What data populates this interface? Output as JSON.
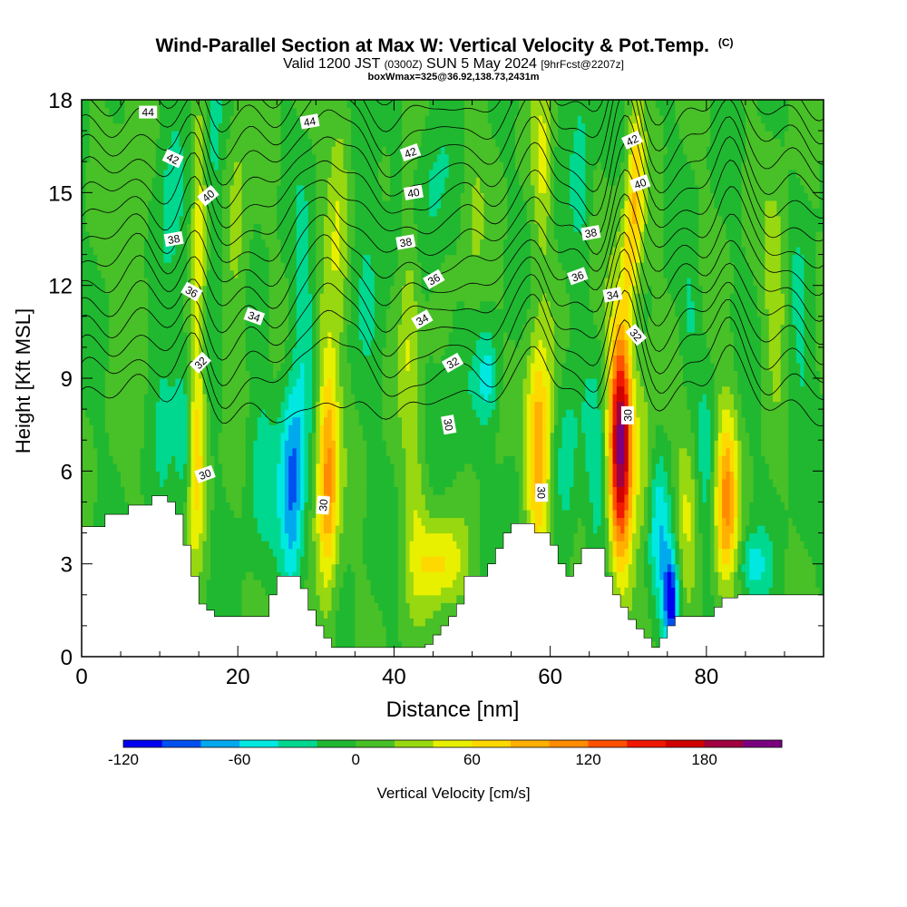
{
  "chart_data": {
    "type": "heatmap",
    "title": "Wind-Parallel Section at Max W: Vertical Velocity & Pot.Temp.",
    "copyright": "(C)",
    "subtitle_parts": {
      "pre": "Valid 1200 JST",
      "utc": "(0300Z)",
      "date": "SUN 5 May 2024",
      "fcst": "[9hrFcst@2207z]"
    },
    "subtitle2": "boxWmax=325@36.92,138.73,2431m",
    "xlabel": "Distance [nm]",
    "ylabel": "Height [Kft MSL]",
    "xlim": [
      0,
      95
    ],
    "ylim": [
      0,
      18
    ],
    "xticks": [
      0,
      20,
      40,
      60,
      80
    ],
    "yticks": [
      0,
      3,
      6,
      9,
      12,
      15,
      18
    ],
    "colorbar": {
      "label": "Vertical Velocity [cm/s]",
      "ticks": [
        "-120",
        "-60",
        "0",
        "60",
        "120",
        "180"
      ],
      "levels": [
        -120,
        -100,
        -80,
        -60,
        -40,
        -20,
        0,
        20,
        40,
        60,
        80,
        100,
        120,
        140,
        160,
        180,
        200,
        220
      ],
      "colors": [
        "#0000f0",
        "#0050f0",
        "#00a8ee",
        "#00e8e0",
        "#00d890",
        "#20b830",
        "#48c028",
        "#98d810",
        "#e8f000",
        "#ffd800",
        "#ffb000",
        "#ff8c00",
        "#ff5000",
        "#f01800",
        "#d00000",
        "#a00040",
        "#7a0080"
      ]
    },
    "terrain": [
      [
        0,
        4.2
      ],
      [
        3,
        4.2
      ],
      [
        3,
        4.6
      ],
      [
        6,
        4.6
      ],
      [
        6,
        4.9
      ],
      [
        9,
        4.9
      ],
      [
        9,
        5.2
      ],
      [
        11,
        5.2
      ],
      [
        11,
        5.0
      ],
      [
        12,
        5.0
      ],
      [
        12,
        4.6
      ],
      [
        13,
        4.6
      ],
      [
        13,
        3.6
      ],
      [
        14,
        3.6
      ],
      [
        14,
        2.6
      ],
      [
        15,
        2.6
      ],
      [
        15,
        1.7
      ],
      [
        16,
        1.7
      ],
      [
        16,
        1.5
      ],
      [
        17,
        1.5
      ],
      [
        17,
        1.3
      ],
      [
        24,
        1.3
      ],
      [
        24,
        2.0
      ],
      [
        25,
        2.0
      ],
      [
        25,
        2.6
      ],
      [
        28,
        2.6
      ],
      [
        28,
        2.2
      ],
      [
        29,
        2.2
      ],
      [
        29,
        1.5
      ],
      [
        30,
        1.5
      ],
      [
        30,
        1.0
      ],
      [
        31,
        1.0
      ],
      [
        31,
        0.6
      ],
      [
        32,
        0.6
      ],
      [
        32,
        0.3
      ],
      [
        44,
        0.3
      ],
      [
        44,
        0.4
      ],
      [
        45,
        0.4
      ],
      [
        45,
        0.7
      ],
      [
        46,
        0.7
      ],
      [
        46,
        1.0
      ],
      [
        47,
        1.0
      ],
      [
        47,
        1.3
      ],
      [
        48,
        1.3
      ],
      [
        48,
        1.7
      ],
      [
        49,
        1.7
      ],
      [
        49,
        2.6
      ],
      [
        52,
        2.6
      ],
      [
        52,
        3.0
      ],
      [
        53,
        3.0
      ],
      [
        53,
        3.5
      ],
      [
        54,
        3.5
      ],
      [
        54,
        4.0
      ],
      [
        55,
        4.0
      ],
      [
        55,
        4.3
      ],
      [
        58,
        4.3
      ],
      [
        58,
        4.0
      ],
      [
        60,
        4.0
      ],
      [
        60,
        3.6
      ],
      [
        61,
        3.6
      ],
      [
        61,
        3.0
      ],
      [
        62,
        3.0
      ],
      [
        62,
        2.6
      ],
      [
        63,
        2.6
      ],
      [
        63,
        3.0
      ],
      [
        64,
        3.0
      ],
      [
        64,
        3.5
      ],
      [
        67,
        3.5
      ],
      [
        67,
        2.6
      ],
      [
        68,
        2.6
      ],
      [
        68,
        2.0
      ],
      [
        69,
        2.0
      ],
      [
        69,
        1.6
      ],
      [
        70,
        1.6
      ],
      [
        70,
        1.2
      ],
      [
        71,
        1.2
      ],
      [
        71,
        0.9
      ],
      [
        72,
        0.9
      ],
      [
        72,
        0.6
      ],
      [
        73,
        0.6
      ],
      [
        73,
        0.3
      ],
      [
        74,
        0.3
      ],
      [
        74,
        0.6
      ],
      [
        75,
        0.6
      ],
      [
        75,
        1.0
      ],
      [
        76,
        1.0
      ],
      [
        76,
        1.3
      ],
      [
        81,
        1.3
      ],
      [
        81,
        1.6
      ],
      [
        82,
        1.6
      ],
      [
        82,
        1.9
      ],
      [
        84,
        1.9
      ],
      [
        84,
        2.0
      ],
      [
        95,
        2.0
      ]
    ],
    "wcells": [
      {
        "x": 7,
        "z": 13,
        "rx": 2,
        "rz": 5,
        "w": 20
      },
      {
        "x": 11,
        "z": 12,
        "rx": 2,
        "rz": 6,
        "w": -30
      },
      {
        "x": 13.5,
        "z": 7,
        "rx": 1.2,
        "rz": 2.5,
        "w": -70
      },
      {
        "x": 14.5,
        "z": 7,
        "rx": 1.3,
        "rz": 3.5,
        "w": 95
      },
      {
        "x": 15,
        "z": 14,
        "rx": 1.0,
        "rz": 4,
        "w": 50
      },
      {
        "x": 17,
        "z": 15,
        "rx": 1.2,
        "rz": 5,
        "w": -30
      },
      {
        "x": 20,
        "z": 14,
        "rx": 1.5,
        "rz": 4,
        "w": 30
      },
      {
        "x": 23,
        "z": 6,
        "rx": 2,
        "rz": 3,
        "w": -25
      },
      {
        "x": 27,
        "z": 5.5,
        "rx": 1.6,
        "rz": 3.5,
        "w": -90
      },
      {
        "x": 28.5,
        "z": 11,
        "rx": 1.2,
        "rz": 4,
        "w": -30
      },
      {
        "x": 31.5,
        "z": 6,
        "rx": 1.4,
        "rz": 4,
        "w": 110
      },
      {
        "x": 33,
        "z": 15,
        "rx": 1.5,
        "rz": 4,
        "w": 40
      },
      {
        "x": 37,
        "z": 14,
        "rx": 2,
        "rz": 5,
        "w": -20
      },
      {
        "x": 42,
        "z": 11,
        "rx": 1.3,
        "rz": 4,
        "w": 40
      },
      {
        "x": 43,
        "z": 5,
        "rx": 1.5,
        "rz": 3,
        "w": 30
      },
      {
        "x": 45,
        "z": 15,
        "rx": 2,
        "rz": 3,
        "w": -25
      },
      {
        "x": 46,
        "z": 3,
        "rx": 3,
        "rz": 1.5,
        "w": 65
      },
      {
        "x": 48,
        "z": 8,
        "rx": 2,
        "rz": 3,
        "w": -20
      },
      {
        "x": 50,
        "z": 14,
        "rx": 1.5,
        "rz": 4,
        "w": 20
      },
      {
        "x": 52,
        "z": 9,
        "rx": 1.5,
        "rz": 1.5,
        "w": -45
      },
      {
        "x": 55,
        "z": 5,
        "rx": 1.5,
        "rz": 2,
        "w": -20
      },
      {
        "x": 58.5,
        "z": 6.5,
        "rx": 1.6,
        "rz": 3.5,
        "w": 110
      },
      {
        "x": 59,
        "z": 16,
        "rx": 1.2,
        "rz": 3,
        "w": 40
      },
      {
        "x": 62,
        "z": 6,
        "rx": 1.6,
        "rz": 3,
        "w": -35
      },
      {
        "x": 64,
        "z": 16,
        "rx": 1.2,
        "rz": 3,
        "w": -30
      },
      {
        "x": 66,
        "z": 6,
        "rx": 1.5,
        "rz": 3,
        "w": -30
      },
      {
        "x": 69,
        "z": 7,
        "rx": 1.5,
        "rz": 4,
        "w": 200
      },
      {
        "x": 70,
        "z": 13,
        "rx": 0.9,
        "rz": 2,
        "w": 50
      },
      {
        "x": 71,
        "z": 15,
        "rx": 1.0,
        "rz": 3,
        "w": 70
      },
      {
        "x": 72,
        "z": 6,
        "rx": 1.3,
        "rz": 3,
        "w": 40
      },
      {
        "x": 74,
        "z": 4,
        "rx": 1.6,
        "rz": 2.5,
        "w": -50
      },
      {
        "x": 75.5,
        "z": 1.8,
        "rx": 1.0,
        "rz": 1.6,
        "w": -115
      },
      {
        "x": 77.5,
        "z": 5,
        "rx": 1.5,
        "rz": 2.5,
        "w": 40
      },
      {
        "x": 78,
        "z": 11,
        "rx": 1.2,
        "rz": 2,
        "w": -20
      },
      {
        "x": 80,
        "z": 6,
        "rx": 1.3,
        "rz": 3,
        "w": -25
      },
      {
        "x": 82.5,
        "z": 5,
        "rx": 1.5,
        "rz": 3,
        "w": 100
      },
      {
        "x": 86,
        "z": 3,
        "rx": 2,
        "rz": 1,
        "w": -45
      },
      {
        "x": 89,
        "z": 12,
        "rx": 1.5,
        "rz": 3,
        "w": 40
      },
      {
        "x": 92,
        "z": 10,
        "rx": 2,
        "rz": 4,
        "w": -20
      }
    ],
    "theta_contours": [
      30,
      31,
      32,
      33,
      34,
      35,
      36,
      37,
      38,
      39,
      40,
      41,
      42,
      43,
      44
    ],
    "contour_labels": [
      {
        "text": "44",
        "x": 8.5,
        "z": 17.6,
        "rot": 0
      },
      {
        "text": "44",
        "x": 29.2,
        "z": 17.3,
        "rot": -10
      },
      {
        "text": "42",
        "x": 11.7,
        "z": 16.1,
        "rot": 25
      },
      {
        "text": "42",
        "x": 42.1,
        "z": 16.3,
        "rot": -20
      },
      {
        "text": "42",
        "x": 70.5,
        "z": 16.7,
        "rot": -25
      },
      {
        "text": "40",
        "x": 16.2,
        "z": 14.9,
        "rot": -40
      },
      {
        "text": "40",
        "x": 42.5,
        "z": 15.0,
        "rot": -10
      },
      {
        "text": "40",
        "x": 71.5,
        "z": 15.3,
        "rot": -20
      },
      {
        "text": "38",
        "x": 11.8,
        "z": 13.5,
        "rot": -10
      },
      {
        "text": "38",
        "x": 41.5,
        "z": 13.4,
        "rot": -10
      },
      {
        "text": "38",
        "x": 65.2,
        "z": 13.7,
        "rot": -10
      },
      {
        "text": "36",
        "x": 14.1,
        "z": 11.8,
        "rot": 30
      },
      {
        "text": "36",
        "x": 45.1,
        "z": 12.2,
        "rot": -30
      },
      {
        "text": "36",
        "x": 63.5,
        "z": 12.3,
        "rot": -20
      },
      {
        "text": "34",
        "x": 22.1,
        "z": 11.0,
        "rot": 20
      },
      {
        "text": "34",
        "x": 43.6,
        "z": 10.9,
        "rot": -30
      },
      {
        "text": "34",
        "x": 68.0,
        "z": 11.7,
        "rot": -10
      },
      {
        "text": "32",
        "x": 15.2,
        "z": 9.5,
        "rot": -45
      },
      {
        "text": "32",
        "x": 47.5,
        "z": 9.5,
        "rot": -30
      },
      {
        "text": "32",
        "x": 71.0,
        "z": 10.4,
        "rot": 50
      },
      {
        "text": "30",
        "x": 15.8,
        "z": 5.9,
        "rot": -20
      },
      {
        "text": "30",
        "x": 30.9,
        "z": 4.9,
        "rot": -85
      },
      {
        "text": "30",
        "x": 47.0,
        "z": 7.5,
        "rot": 80
      },
      {
        "text": "30",
        "x": 58.9,
        "z": 5.3,
        "rot": 90
      },
      {
        "text": "30",
        "x": 69.9,
        "z": 7.8,
        "rot": -90
      }
    ]
  }
}
